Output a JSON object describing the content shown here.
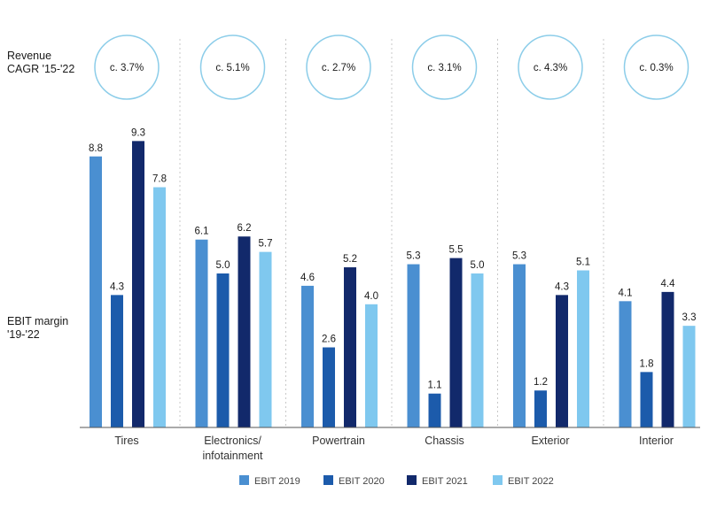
{
  "labels": {
    "revenue_line1": "Revenue",
    "revenue_line2": "CAGR '15-'22",
    "ebit_line1": "EBIT margin",
    "ebit_line2": "'19-'22"
  },
  "colors": {
    "EBIT 2019": "#4a8fd1",
    "EBIT 2020": "#1c5bab",
    "EBIT 2021": "#12296b",
    "EBIT 2022": "#7fc8ef",
    "circle_stroke": "#8ccde9",
    "divider": "#c8c8c8",
    "axis": "#555555"
  },
  "chart_data": {
    "type": "bar",
    "title": "",
    "xlabel": "",
    "ylabel": "EBIT margin '19-'22",
    "ylim": [
      0,
      10
    ],
    "categories": [
      {
        "name": "Tires",
        "label_lines": [
          "Tires"
        ],
        "cagr": "c. 3.7%"
      },
      {
        "name": "Electronics/ infotainment",
        "label_lines": [
          "Electronics/",
          "infotainment"
        ],
        "cagr": "c. 5.1%"
      },
      {
        "name": "Powertrain",
        "label_lines": [
          "Powertrain"
        ],
        "cagr": "c. 2.7%"
      },
      {
        "name": "Chassis",
        "label_lines": [
          "Chassis"
        ],
        "cagr": "c. 3.1%"
      },
      {
        "name": "Exterior",
        "label_lines": [
          "Exterior"
        ],
        "cagr": "c. 4.3%"
      },
      {
        "name": "Interior",
        "label_lines": [
          "Interior"
        ],
        "cagr": "c. 0.3%"
      }
    ],
    "series": [
      {
        "name": "EBIT 2019",
        "values": [
          8.8,
          6.1,
          4.6,
          5.3,
          5.3,
          4.1
        ],
        "labels": [
          "8.8",
          "6.1",
          "4.6",
          "5.3",
          "5.3",
          "4.1"
        ]
      },
      {
        "name": "EBIT 2020",
        "values": [
          4.3,
          5.0,
          2.6,
          1.1,
          1.2,
          1.8
        ],
        "labels": [
          "4.3",
          "5.0",
          "2.6",
          "1.1",
          "1.2",
          "1.8"
        ]
      },
      {
        "name": "EBIT 2021",
        "values": [
          9.3,
          6.2,
          5.2,
          5.5,
          4.3,
          4.4
        ],
        "labels": [
          "9.3",
          "6.2",
          "5.2",
          "5.5",
          "4.3",
          "4.4"
        ]
      },
      {
        "name": "EBIT 2022",
        "values": [
          7.8,
          5.7,
          4.0,
          5.0,
          5.1,
          3.3
        ],
        "labels": [
          "7.8",
          "5.7",
          "4.0",
          "5.0",
          "5.1",
          "3.3"
        ]
      }
    ],
    "legend_position": "bottom-center"
  }
}
